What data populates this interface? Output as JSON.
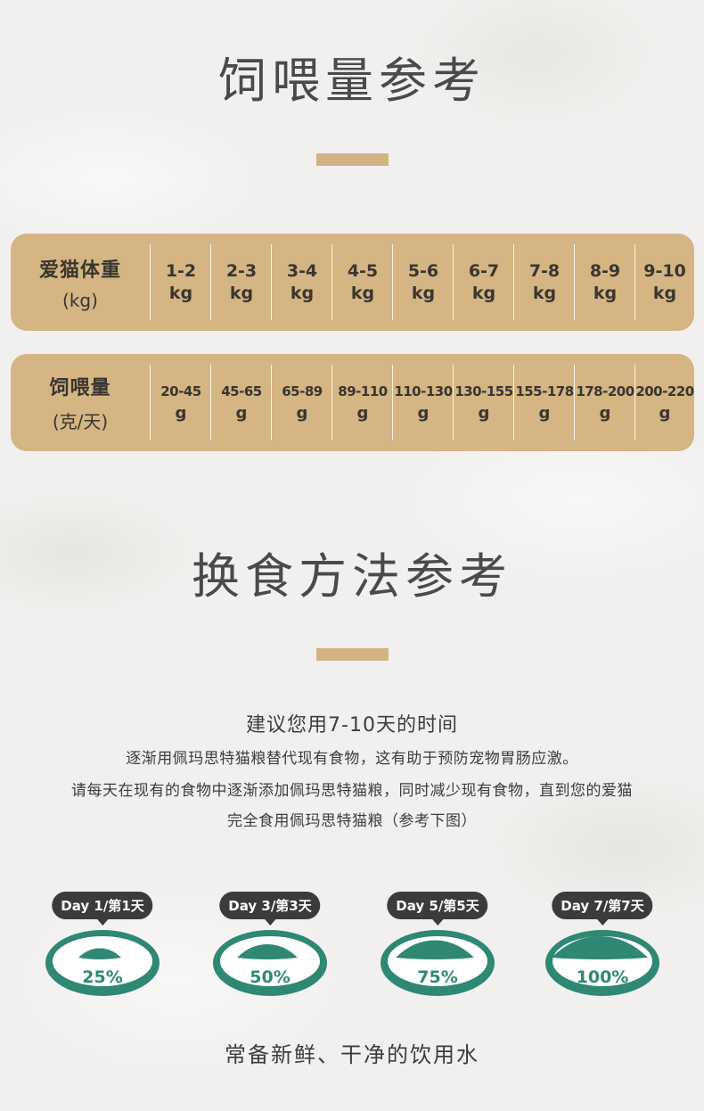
{
  "section1": {
    "title": "饲喂量参考"
  },
  "weight_row": {
    "label": "爱猫体重",
    "unit": "(kg)",
    "cells": [
      {
        "range": "1-2",
        "unit": "kg"
      },
      {
        "range": "2-3",
        "unit": "kg"
      },
      {
        "range": "3-4",
        "unit": "kg"
      },
      {
        "range": "4-5",
        "unit": "kg"
      },
      {
        "range": "5-6",
        "unit": "kg"
      },
      {
        "range": "6-7",
        "unit": "kg"
      },
      {
        "range": "7-8",
        "unit": "kg"
      },
      {
        "range": "8-9",
        "unit": "kg"
      },
      {
        "range": "9-10",
        "unit": "kg"
      }
    ]
  },
  "amount_row": {
    "label": "饲喂量",
    "unit": "(克/天)",
    "cells": [
      {
        "range": "20-45",
        "unit": "g"
      },
      {
        "range": "45-65",
        "unit": "g"
      },
      {
        "range": "65-89",
        "unit": "g"
      },
      {
        "range": "89-110",
        "unit": "g"
      },
      {
        "range": "110-130",
        "unit": "g"
      },
      {
        "range": "130-155",
        "unit": "g"
      },
      {
        "range": "155-178",
        "unit": "g"
      },
      {
        "range": "178-200",
        "unit": "g"
      },
      {
        "range": "200-220",
        "unit": "g"
      }
    ]
  },
  "section2": {
    "title": "换食方法参考",
    "subtitle": "建议您用7-10天的时间",
    "lines": [
      "逐渐用佩玛思特猫粮替代现有食物，这有助于预防宠物胃肠应激。",
      "请每天在现有的食物中逐渐添加佩玛思特猫粮，同时减少现有食物，直到您的爱猫",
      "完全食用佩玛思特猫粮（参考下图）"
    ]
  },
  "bowls": [
    {
      "day": "Day 1/第1天",
      "percent": "25%",
      "fill": 0.25
    },
    {
      "day": "Day 3/第3天",
      "percent": "50%",
      "fill": 0.5
    },
    {
      "day": "Day 5/第5天",
      "percent": "75%",
      "fill": 0.75
    },
    {
      "day": "Day 7/第7天",
      "percent": "100%",
      "fill": 1.0
    }
  ],
  "footer": "常备新鲜、干净的饮用水",
  "colors": {
    "accent_tan": "#d4b583",
    "bowl_green": "#2e8873",
    "bubble_dark": "#3b3b3b",
    "background": "#f1f0ee"
  }
}
